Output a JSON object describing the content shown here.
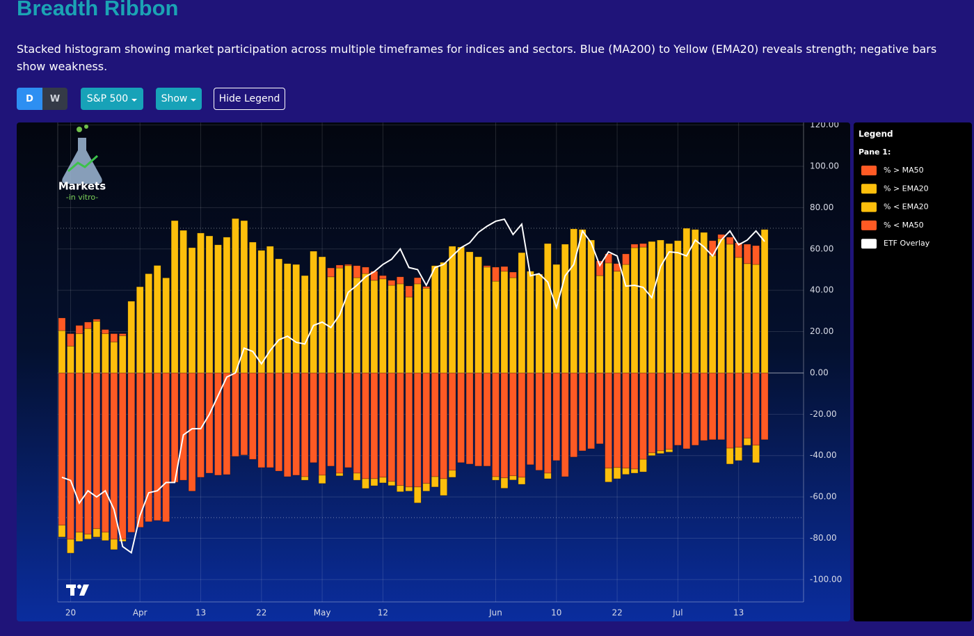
{
  "header": {
    "title": "Breadth Ribbon",
    "description": "Stacked histogram showing market participation across multiple timeframes for indices and sectors. Blue (MA200) to Yellow (EMA20) reveals strength; negative bars show weakness."
  },
  "controls": {
    "timeframes": [
      "D",
      "W"
    ],
    "index": "S&P 500",
    "show": "Show",
    "legend_toggle": "Hide Legend"
  },
  "logo": {
    "name": "Markets",
    "tagline": "-in vitro-"
  },
  "legend": {
    "title": "Legend",
    "pane": "Pane 1:"
  },
  "chart_data": {
    "type": "bar",
    "stacked": true,
    "grid": true,
    "categories": [
      null,
      "20",
      null,
      null,
      null,
      null,
      null,
      null,
      null,
      "Apr",
      null,
      null,
      null,
      null,
      null,
      null,
      "13",
      null,
      null,
      null,
      null,
      null,
      null,
      "22",
      null,
      null,
      null,
      null,
      null,
      null,
      "May",
      null,
      null,
      null,
      null,
      null,
      null,
      "12",
      null,
      null,
      null,
      null,
      null,
      null,
      null,
      null,
      null,
      null,
      null,
      null,
      "Jun",
      null,
      null,
      null,
      null,
      null,
      null,
      "10",
      null,
      null,
      null,
      null,
      null,
      null,
      "22",
      null,
      null,
      null,
      null,
      null,
      null,
      "Jul",
      null,
      null,
      null,
      null,
      null,
      null,
      "13",
      null,
      null,
      null
    ],
    "ylim": [
      -110.8,
      121.2
    ],
    "yticks": [
      {
        "value": 120,
        "label": "120.00"
      },
      {
        "value": 100,
        "label": "100.00"
      },
      {
        "value": 80,
        "label": "80.00"
      },
      {
        "value": 60,
        "label": "60.00"
      },
      {
        "value": 40,
        "label": "40.00"
      },
      {
        "value": 20,
        "label": "20.00"
      },
      {
        "value": 0,
        "label": "0.00"
      },
      {
        "value": -20,
        "label": "-20.00"
      },
      {
        "value": -40,
        "label": "-40.00"
      },
      {
        "value": -60,
        "label": "-60.00"
      },
      {
        "value": -80,
        "label": "-80.00"
      },
      {
        "value": -100,
        "label": "-100.00"
      }
    ],
    "reference_lines": [
      70,
      -70
    ],
    "series": [
      {
        "name": "% > MA50",
        "type": "bar",
        "color": "#ff5a24",
        "values": [
          6.1,
          6,
          4,
          3.1,
          1,
          2,
          4,
          1,
          0,
          0,
          0,
          0,
          0,
          0,
          0,
          0,
          0,
          0,
          0,
          0,
          0,
          0,
          0,
          0,
          0,
          0,
          0,
          0,
          0,
          0,
          0,
          4.3,
          1.4,
          0.6,
          5.8,
          3.1,
          4.4,
          1.6,
          2.4,
          3.4,
          5.4,
          3,
          0.8,
          0,
          0,
          0,
          0,
          0,
          0,
          0.7,
          6.8,
          2.3,
          2.7,
          0,
          0,
          0,
          0,
          0,
          0,
          0,
          0,
          0,
          7.1,
          4.4,
          3.7,
          5.1,
          1.7,
          1.7,
          0,
          0,
          0,
          0,
          0,
          0,
          0,
          7.1,
          2,
          3.4,
          7.1,
          9.4,
          9.1,
          0
        ]
      },
      {
        "name": "% > EMA20",
        "type": "bar",
        "color": "#fdbf0c",
        "values": [
          20.5,
          13,
          19,
          21.5,
          25,
          19,
          15,
          18,
          34.7,
          41.7,
          48,
          52,
          46,
          73.7,
          69,
          60.6,
          67.7,
          66.3,
          62,
          65.7,
          74.7,
          73.7,
          63.3,
          59.3,
          61.3,
          55.2,
          52.9,
          52.5,
          47.1,
          58.9,
          56.2,
          46.5,
          50.8,
          51.9,
          46.1,
          48.1,
          44.8,
          45.5,
          42.4,
          43.1,
          36.7,
          43.1,
          41,
          51.9,
          53.5,
          61.3,
          60.9,
          58.6,
          56.2,
          51.2,
          44.4,
          49.2,
          46.1,
          58.2,
          49.2,
          47.8,
          62.6,
          52.5,
          62.3,
          69.7,
          69.4,
          64.3,
          47.1,
          53.2,
          49.2,
          52.5,
          60.6,
          60.9,
          63.6,
          64.3,
          62.6,
          64,
          70,
          69.4,
          68,
          56.9,
          65,
          62.3,
          55.9,
          52.9,
          52.5,
          69.4
        ]
      },
      {
        "name": "% < EMA20",
        "type": "bar",
        "color": "#fdbf0c",
        "values": [
          -5.7,
          -6.7,
          -4.4,
          -2.4,
          -4,
          -4,
          -5,
          -1,
          0,
          0,
          0,
          0,
          0,
          0,
          0,
          0,
          0,
          0,
          0,
          0,
          0,
          0,
          0,
          0,
          0,
          0,
          0,
          0,
          -1.7,
          0,
          -4,
          0,
          -1.3,
          0,
          -3.4,
          -4.7,
          -3.4,
          -2.7,
          -2,
          -3,
          -2,
          -7.7,
          -3.7,
          -5,
          -8.1,
          -3.4,
          0,
          0,
          0,
          0,
          -1.7,
          -5,
          -2,
          -3.4,
          0,
          0,
          -2.7,
          0,
          0,
          0,
          0,
          0,
          0,
          -6.7,
          -5.4,
          -3,
          -2,
          -6.1,
          -1.3,
          -1.3,
          -1.3,
          0,
          0,
          0,
          0,
          0,
          0,
          -7.7,
          -6.4,
          -3.4,
          -8.4,
          0
        ]
      },
      {
        "name": "% < MA50",
        "type": "bar",
        "color": "#ff5a24",
        "values": [
          -73.7,
          -80.5,
          -77.1,
          -78,
          -75.4,
          -77.1,
          -80.5,
          -80.5,
          -77.1,
          -74.7,
          -72,
          -71.4,
          -72,
          -52.9,
          -51.9,
          -57.2,
          -50.5,
          -48.5,
          -49.5,
          -49.2,
          -40.4,
          -39.7,
          -41.8,
          -45.8,
          -45.8,
          -47.5,
          -50.2,
          -49.5,
          -50.2,
          -43.4,
          -49.5,
          -45.1,
          -48.5,
          -45.8,
          -48.5,
          -51.2,
          -51.2,
          -50.5,
          -52.5,
          -54.5,
          -55.2,
          -55.2,
          -53.5,
          -50.2,
          -51.2,
          -47.1,
          -43.4,
          -44.1,
          -45.1,
          -45.1,
          -50.2,
          -50.8,
          -49.8,
          -50.5,
          -44.4,
          -47.1,
          -48.5,
          -42.4,
          -50.2,
          -40.7,
          -37.7,
          -36.7,
          -34.3,
          -46.1,
          -45.8,
          -46.1,
          -46.5,
          -41.8,
          -38.7,
          -37.7,
          -37,
          -35,
          -36.7,
          -35,
          -32.7,
          -32.3,
          -32.3,
          -36.4,
          -36,
          -31.6,
          -35,
          -32.3
        ]
      },
      {
        "name": "ETF Overlay",
        "type": "line",
        "color": "#ffffff",
        "values": [
          -50.5,
          -52,
          -63,
          -57,
          -60,
          -57,
          -66,
          -84,
          -87,
          -69,
          -58,
          -57,
          -53,
          -53,
          -30,
          -27,
          -27,
          -20,
          -11,
          -2,
          0,
          12,
          10.4,
          4.4,
          10.8,
          16,
          17.8,
          14.8,
          14,
          23,
          24.6,
          22,
          28,
          39,
          42.4,
          46.5,
          49,
          52.5,
          55,
          60,
          51,
          50,
          42.4,
          51,
          52.5,
          56.6,
          60.6,
          63,
          68,
          71,
          73.4,
          74.4,
          67,
          72,
          47,
          48,
          44,
          31.6,
          47,
          52.5,
          68.7,
          63,
          52,
          58.6,
          56.6,
          42,
          42.4,
          41.4,
          36.4,
          51.5,
          58.6,
          58.2,
          56.6,
          64.3,
          61,
          56.6,
          64.3,
          68.7,
          62,
          64.3,
          68.7,
          63.6
        ]
      }
    ]
  }
}
